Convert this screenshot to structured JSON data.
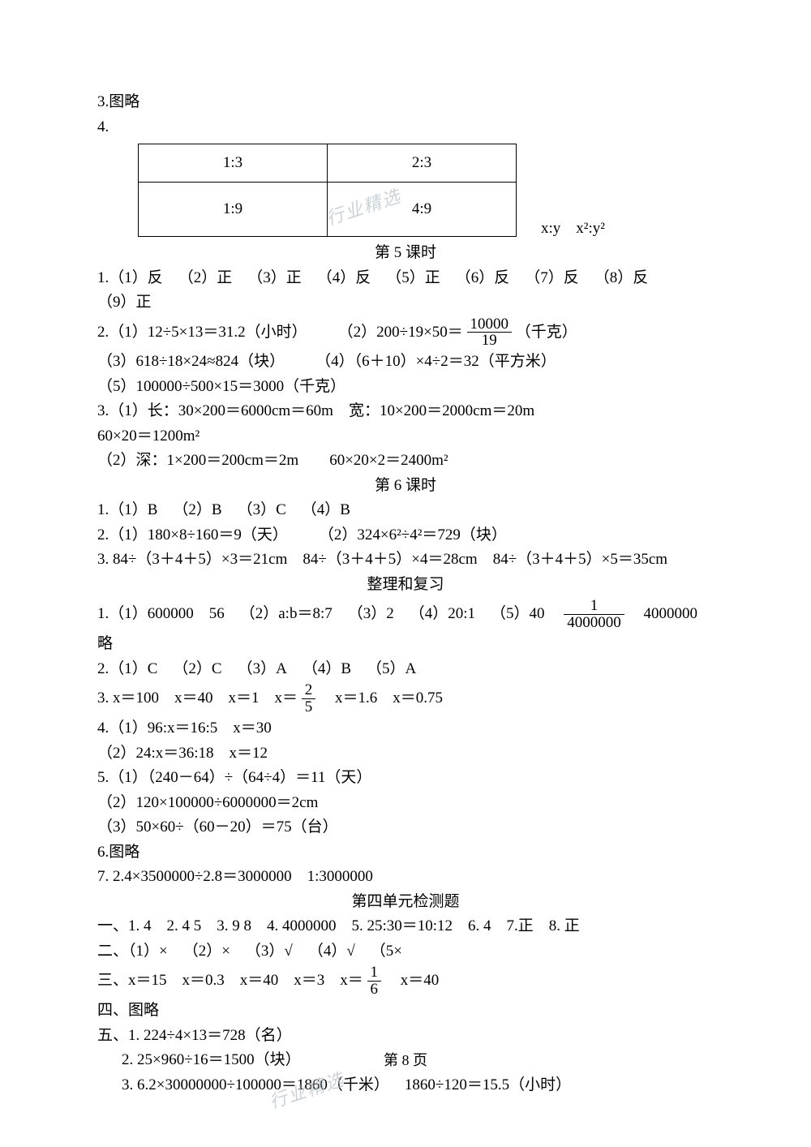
{
  "header": {
    "l1": "3.图略",
    "l2": "4."
  },
  "table": {
    "r1c1": "1:3",
    "r1c2": "2:3",
    "r2c1": "1:9",
    "r2c2": "4:9",
    "after": "x:y x²:y²"
  },
  "sec5_title": "第 5 课时",
  "sec5": {
    "l1": "1.（1）反 （2）正 （3）正 （4）反 （5）正 （6）反 （7）反 （8）反",
    "l2": "（9）正",
    "l3a": "2.（1）12÷5×13＝31.2（小时）  （2）200÷19×50＝",
    "l3_num": "10000",
    "l3_den": "19",
    "l3b": "（千克）",
    "l4": "（3）618÷18×24≈824（块）  （4）（6＋10）×4÷2＝32（平方米）",
    "l5": "（5）100000÷500×15＝3000（千克）",
    "l6": "3.（1）长：30×200＝6000cm＝60m 宽：10×200＝2000cm＝20m",
    "l7": "60×20＝1200m²",
    "l8": "（2）深：1×200＝200cm＝2m  60×20×2＝2400m²"
  },
  "sec6_title": "第 6 课时",
  "sec6": {
    "l1": "1.（1）B （2）B （3）C （4）B",
    "l2": "2.（1）180×8÷160＝9（天）  （2）324×6²÷4²＝729（块）",
    "l3": "3. 84÷（3＋4＋5）×3＝21cm 84÷（3＋4＋5）×4＝28cm 84÷（3＋4＋5）×5＝35cm"
  },
  "review_title": "整理和复习",
  "review": {
    "l1a": "1.（1）600000 56 （2）a:b＝8:7 （3）2 （4）20:1 （5）40 ",
    "l1_num": "1",
    "l1_den": "4000000",
    "l1b": " 4000000",
    "l2": "略",
    "l3": "2.（1）C （2）C （3）A （4）B （5）A",
    "l4a": "3. x＝100 x＝40 x＝1 x＝",
    "l4_num": "2",
    "l4_den": "5",
    "l4b": " x＝1.6 x＝0.75",
    "l5": "4.（1）96:x＝16:5 x＝30",
    "l6": "（2）24:x＝36:18 x＝12",
    "l7": "5.（1）（240－64）÷（64÷4）＝11（天）",
    "l8": "（2）120×100000÷6000000＝2cm",
    "l9": "（3）50×60÷（60－20）＝75（台）",
    "l10": "6.图略",
    "l11": "7. 2.4×3500000÷2.8＝3000000 1:3000000"
  },
  "unit4_title": "第四单元检测题",
  "unit4": {
    "l1": "一、1. 4 2. 4  5 3. 9  8 4. 4000000 5.  25:30＝10:12 6. 4 7.正 8. 正",
    "l2": "二、（1）× （2）× （3）√ （4）√ （5×",
    "l3a": "三、x＝15 x＝0.3 x＝40 x＝3 x＝",
    "l3_num": "1",
    "l3_den": "6",
    "l3b": " x＝40",
    "l4": "四、图略",
    "l5": "五、1. 224÷4×13＝728（名）",
    "l6": "2. 25×960÷16＝1500（块）",
    "l7": "3. 6.2×30000000÷100000＝1860（千米） 1860÷120＝15.5（小时）"
  },
  "footer": "第 8 页",
  "watermark": "行业精选"
}
